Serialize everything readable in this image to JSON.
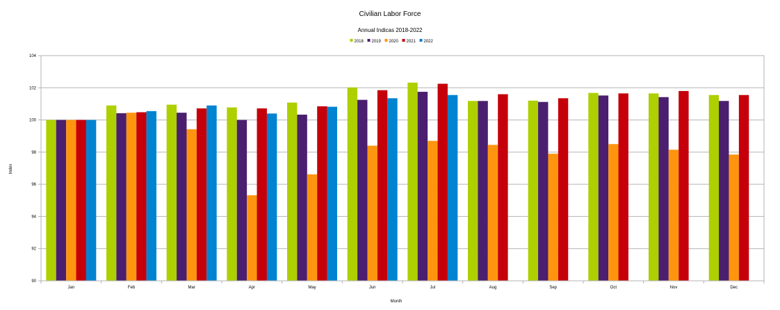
{
  "chart_data": {
    "type": "bar",
    "title": "Civilian Labor Force",
    "subtitle": "Annual Indicas 2018-2022",
    "xlabel": "Month",
    "ylabel": "Index",
    "ylim": [
      90,
      104
    ],
    "yticks": [
      "90",
      "92",
      "94",
      "96",
      "98",
      "100",
      "102",
      "104"
    ],
    "grid": true,
    "legend_position": "top-center",
    "categories": [
      "Jan",
      "Feb",
      "Mar",
      "Apr",
      "May",
      "Jun",
      "Jul",
      "Aug",
      "Sep",
      "Oct",
      "Nov",
      "Dec"
    ],
    "series": [
      {
        "name": "2018",
        "color": "#aecf00",
        "values": [
          100.0,
          100.9,
          100.95,
          100.78,
          101.08,
          102.02,
          102.32,
          101.18,
          101.2,
          101.68,
          101.65,
          101.55
        ]
      },
      {
        "name": "2019",
        "color": "#4b1f6f",
        "values": [
          100.0,
          100.42,
          100.45,
          100.0,
          100.33,
          101.25,
          101.75,
          101.18,
          101.12,
          101.52,
          101.42,
          101.18
        ]
      },
      {
        "name": "2020",
        "color": "#ff950e",
        "values": [
          100.0,
          100.45,
          99.42,
          95.32,
          96.62,
          98.4,
          98.7,
          98.45,
          97.9,
          98.5,
          98.15,
          97.85
        ]
      },
      {
        "name": "2021",
        "color": "#c5000b",
        "values": [
          100.0,
          100.48,
          100.72,
          100.72,
          100.85,
          101.85,
          102.25,
          101.6,
          101.35,
          101.65,
          101.8,
          101.55
        ]
      },
      {
        "name": "2022",
        "color": "#0084d1",
        "values": [
          100.0,
          100.55,
          100.9,
          100.4,
          100.82,
          101.35,
          101.55,
          null,
          null,
          null,
          null,
          null
        ]
      }
    ]
  }
}
